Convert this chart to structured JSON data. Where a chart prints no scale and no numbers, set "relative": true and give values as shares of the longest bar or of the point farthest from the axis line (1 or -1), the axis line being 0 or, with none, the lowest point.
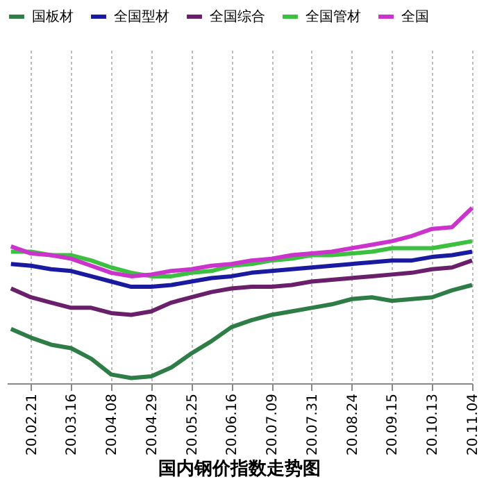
{
  "chart_data": {
    "type": "line",
    "title": "国内钢价指数走势图",
    "relative": true,
    "grid": "x",
    "legend": "top",
    "line_style": "solid",
    "marker": "none",
    "categories": [
      null,
      "20.02.21",
      null,
      "20.03.16",
      null,
      "20.04.08",
      null,
      "20.04.29",
      null,
      "20.05.25",
      null,
      "20.06.16",
      null,
      "20.07.09",
      null,
      "20.07.31",
      null,
      "20.08.24",
      null,
      "20.09.15",
      null,
      "20.10.13",
      null,
      "20.11.04"
    ],
    "series": [
      {
        "name": "国板材",
        "color": "#2e7d46",
        "values": [
          0.31,
          0.26,
          0.22,
          0.2,
          0.14,
          0.05,
          0.03,
          0.04,
          0.09,
          0.17,
          0.24,
          0.32,
          0.36,
          0.39,
          0.41,
          0.43,
          0.45,
          0.48,
          0.49,
          0.47,
          0.48,
          0.49,
          0.53,
          0.56
        ]
      },
      {
        "name": "全国型材",
        "color": "#1a1aa0",
        "values": [
          0.68,
          0.67,
          0.65,
          0.64,
          0.61,
          0.58,
          0.55,
          0.55,
          0.56,
          0.58,
          0.6,
          0.61,
          0.63,
          0.64,
          0.65,
          0.66,
          0.67,
          0.68,
          0.69,
          0.7,
          0.7,
          0.72,
          0.73,
          0.75
        ]
      },
      {
        "name": "全国综合",
        "color": "#6a1f6a",
        "values": [
          0.54,
          0.49,
          0.46,
          0.43,
          0.43,
          0.4,
          0.39,
          0.41,
          0.46,
          0.49,
          0.52,
          0.54,
          0.55,
          0.55,
          0.56,
          0.58,
          0.59,
          0.6,
          0.61,
          0.62,
          0.63,
          0.65,
          0.66,
          0.7
        ]
      },
      {
        "name": "全国管材",
        "color": "#3cc040",
        "values": [
          0.75,
          0.75,
          0.73,
          0.73,
          0.7,
          0.66,
          0.63,
          0.61,
          0.61,
          0.63,
          0.64,
          0.67,
          0.68,
          0.7,
          0.71,
          0.73,
          0.73,
          0.74,
          0.75,
          0.77,
          0.77,
          0.77,
          0.79,
          0.81
        ]
      },
      {
        "name": "全国",
        "color": "#cc33cc",
        "values": [
          0.78,
          0.74,
          0.73,
          0.71,
          0.67,
          0.63,
          0.61,
          0.62,
          0.64,
          0.65,
          0.67,
          0.68,
          0.7,
          0.71,
          0.73,
          0.74,
          0.75,
          0.77,
          0.79,
          0.81,
          0.84,
          0.88,
          0.89,
          1.0
        ]
      }
    ]
  }
}
